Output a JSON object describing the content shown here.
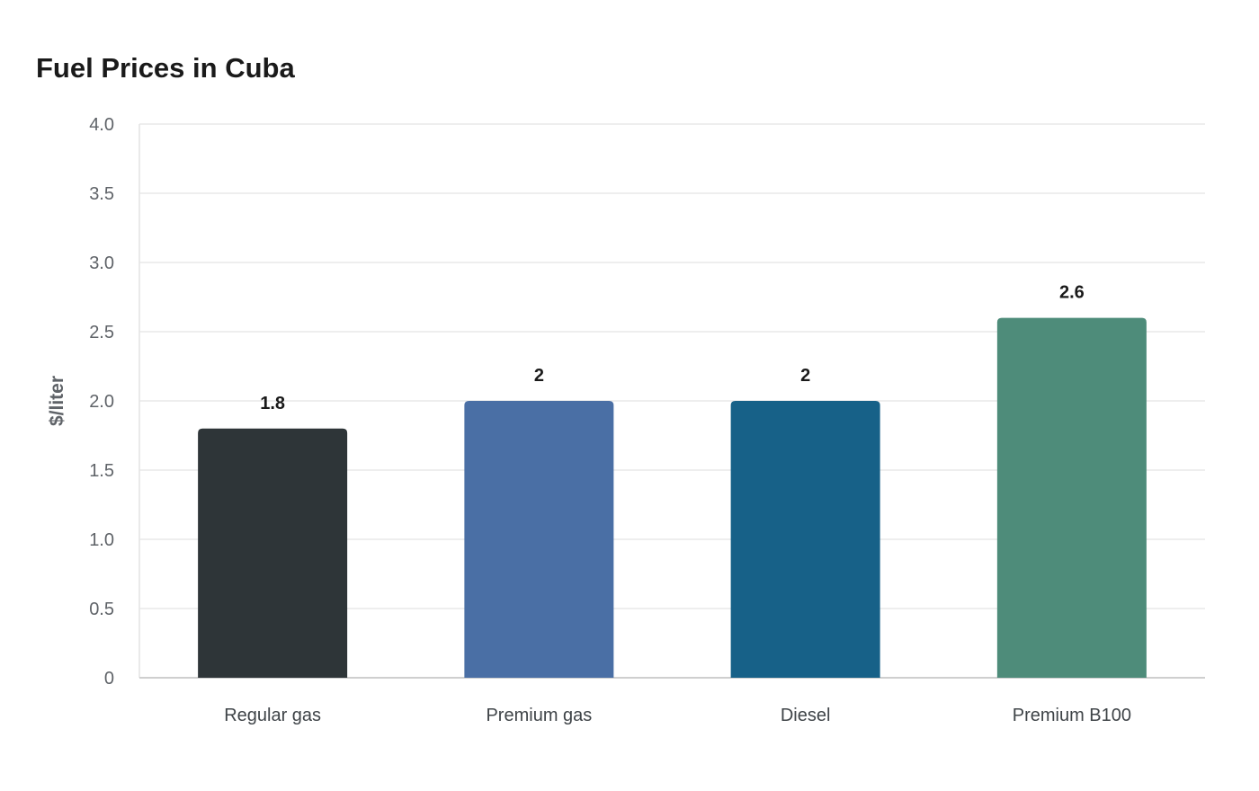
{
  "chart_data": {
    "type": "bar",
    "title": "Fuel Prices in Cuba",
    "xlabel": "",
    "ylabel": "$/liter",
    "categories": [
      "Regular gas",
      "Premium gas",
      "Diesel",
      "Premium B100"
    ],
    "values": [
      1.8,
      2,
      2,
      2.6
    ],
    "value_labels": [
      "1.8",
      "2",
      "2",
      "2.6"
    ],
    "colors": [
      "#2e3538",
      "#4a6fa5",
      "#176188",
      "#4e8c7a"
    ],
    "ylim": [
      0,
      4
    ],
    "yticks": [
      0,
      0.5,
      1,
      1.5,
      2,
      2.5,
      3,
      3.5,
      4
    ],
    "ytick_labels": [
      "0",
      "0.5",
      "1.0",
      "1.5",
      "2.0",
      "2.5",
      "3.0",
      "3.5",
      "4.0"
    ],
    "grid": true,
    "legend": "none"
  }
}
